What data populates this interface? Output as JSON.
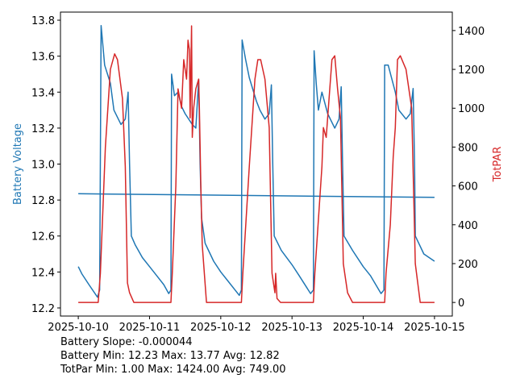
{
  "chart_data": {
    "type": "line",
    "xlabel": "",
    "ylabel": "Battery Voltage",
    "y2label": "TotPAR",
    "x_ticks": [
      "2025-10-10",
      "2025-10-11",
      "2025-10-12",
      "2025-10-13",
      "2025-10-14",
      "2025-10-15"
    ],
    "x_range_days": [
      -0.25,
      5.25
    ],
    "ylim": [
      12.155,
      13.845
    ],
    "y_ticks": [
      "12.2",
      "12.4",
      "12.6",
      "12.8",
      "13.0",
      "13.2",
      "13.4",
      "13.6",
      "13.8"
    ],
    "y2lim": [
      -70,
      1495
    ],
    "y2_ticks": [
      "0",
      "200",
      "400",
      "600",
      "800",
      "1000",
      "1200",
      "1400"
    ],
    "grid": false,
    "series": [
      {
        "name": "Battery Voltage",
        "axis": "left",
        "color": "#1f77b4",
        "x": [
          0,
          0.05,
          0.15,
          0.27,
          0.3,
          0.32,
          0.37,
          0.45,
          0.5,
          0.6,
          0.66,
          0.7,
          0.72,
          0.745,
          0.8,
          0.9,
          1.0,
          1.1,
          1.2,
          1.27,
          1.3,
          1.31,
          1.35,
          1.4,
          1.45,
          1.5,
          1.6,
          1.65,
          1.69,
          1.71,
          1.73,
          1.78,
          1.9,
          2.0,
          2.1,
          2.26,
          2.29,
          2.3,
          2.35,
          2.4,
          2.5,
          2.55,
          2.62,
          2.68,
          2.71,
          2.73,
          2.75,
          2.85,
          3.0,
          3.1,
          3.26,
          3.3,
          3.31,
          3.34,
          3.37,
          3.42,
          3.5,
          3.6,
          3.66,
          3.69,
          3.71,
          3.73,
          3.85,
          4.0,
          4.1,
          4.25,
          4.29,
          4.3,
          4.35,
          4.45,
          4.5,
          4.6,
          4.66,
          4.7,
          4.72,
          4.73,
          4.85,
          5.0
        ],
        "y": [
          12.43,
          12.39,
          12.33,
          12.26,
          12.3,
          13.77,
          13.55,
          13.45,
          13.3,
          13.22,
          13.25,
          13.4,
          13.0,
          12.6,
          12.55,
          12.48,
          12.43,
          12.38,
          12.33,
          12.28,
          12.3,
          13.5,
          13.38,
          13.4,
          13.32,
          13.28,
          13.22,
          13.2,
          13.47,
          13.0,
          12.7,
          12.56,
          12.46,
          12.4,
          12.35,
          12.27,
          12.3,
          13.69,
          13.58,
          13.48,
          13.35,
          13.3,
          13.25,
          13.28,
          13.44,
          13.0,
          12.6,
          12.52,
          12.44,
          12.38,
          12.28,
          12.3,
          13.63,
          13.45,
          13.3,
          13.4,
          13.28,
          13.2,
          13.25,
          13.43,
          13.0,
          12.6,
          12.52,
          12.43,
          12.38,
          12.28,
          12.3,
          13.55,
          13.55,
          13.4,
          13.3,
          13.25,
          13.28,
          13.42,
          13.0,
          12.6,
          12.5,
          12.46
        ]
      },
      {
        "name": "Battery trend",
        "axis": "left",
        "color": "#1f77b4",
        "x": [
          0,
          5
        ],
        "y": [
          12.835,
          12.815
        ]
      },
      {
        "name": "TotPAR",
        "axis": "right",
        "color": "#d62728",
        "x": [
          0,
          0.28,
          0.31,
          0.38,
          0.45,
          0.51,
          0.55,
          0.62,
          0.66,
          0.69,
          0.72,
          0.78,
          1.3,
          1.32,
          1.37,
          1.4,
          1.45,
          1.48,
          1.52,
          1.54,
          1.56,
          1.57,
          1.59,
          1.6,
          1.62,
          1.65,
          1.69,
          1.7,
          1.72,
          1.74,
          1.8,
          2.29,
          2.31,
          2.4,
          2.48,
          2.52,
          2.56,
          2.62,
          2.68,
          2.72,
          2.76,
          2.77,
          2.79,
          2.84,
          3.3,
          3.32,
          3.42,
          3.44,
          3.48,
          3.56,
          3.6,
          3.64,
          3.68,
          3.72,
          3.78,
          3.85,
          4.3,
          4.32,
          4.38,
          4.42,
          4.45,
          4.48,
          4.52,
          4.6,
          4.68,
          4.73,
          4.8,
          5.0
        ],
        "y": [
          0,
          0,
          150,
          800,
          1200,
          1280,
          1250,
          1050,
          700,
          100,
          50,
          0,
          0,
          150,
          600,
          1100,
          1000,
          1250,
          1150,
          1350,
          1300,
          950,
          1424,
          850,
          1000,
          1100,
          1150,
          1000,
          600,
          300,
          0,
          0,
          150,
          700,
          1150,
          1250,
          1250,
          1150,
          900,
          150,
          50,
          150,
          20,
          0,
          0,
          150,
          700,
          900,
          850,
          1250,
          1270,
          1100,
          950,
          200,
          50,
          0,
          0,
          150,
          400,
          750,
          900,
          1250,
          1270,
          1200,
          1000,
          200,
          0,
          0
        ]
      }
    ]
  },
  "stats": {
    "slope": "Battery Slope: -0.000044",
    "battery": "Battery Min: 12.23 Max: 13.77 Avg: 12.82",
    "totpar": "TotPar Min: 1.00 Max: 1424.00 Avg: 749.00"
  }
}
